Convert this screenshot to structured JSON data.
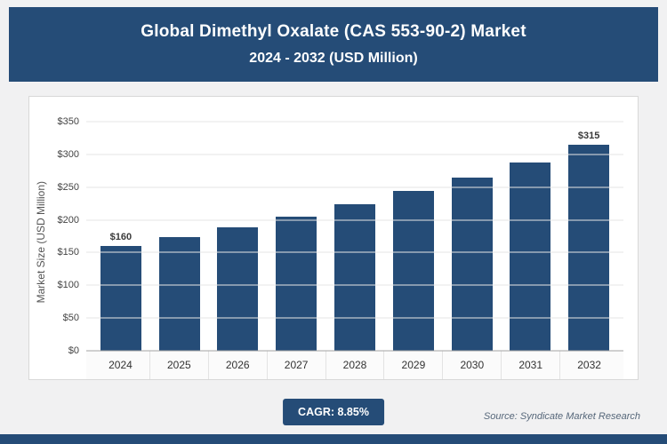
{
  "header": {
    "title_line1": "Global Dimethyl Oxalate (CAS 553-90-2) Market",
    "title_line2": "2024 - 2032 (USD Million)"
  },
  "chart_data": {
    "type": "bar",
    "title": "Global Dimethyl Oxalate (CAS 553-90-2) Market 2024 - 2032 (USD Million)",
    "categories": [
      "2024",
      "2025",
      "2026",
      "2027",
      "2028",
      "2029",
      "2030",
      "2031",
      "2032"
    ],
    "values": [
      160,
      173,
      189,
      205,
      224,
      244,
      265,
      288,
      315
    ],
    "data_labels": [
      "$160",
      null,
      null,
      null,
      null,
      null,
      null,
      null,
      "$315"
    ],
    "xlabel": "",
    "ylabel": "Market Size (USD Million)",
    "ylim": [
      0,
      350
    ],
    "ytick_step": 50,
    "ytick_prefix": "$",
    "grid": true,
    "legend": "none",
    "bar_color": "#254c77"
  },
  "footer": {
    "cagr_label": "CAGR: 8.85%",
    "source": "Source: Syndicate Market Research"
  },
  "colors": {
    "accent": "#254c77",
    "page_background": "#f1f1f2",
    "panel_background": "#ffffff",
    "gridline": "#e6e6e6",
    "axis_text": "#444444",
    "source_text": "#56677a"
  }
}
